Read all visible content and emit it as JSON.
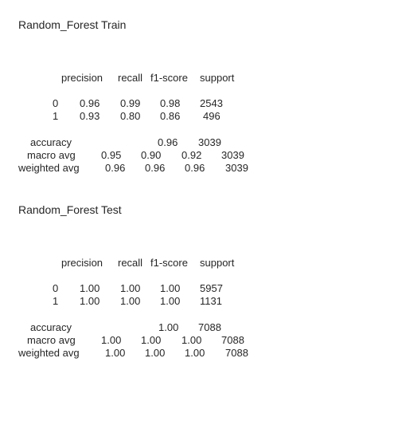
{
  "reports": [
    {
      "title": "Random_Forest Train",
      "header": [
        "precision",
        "recall",
        "f1-score",
        "support"
      ],
      "rows": [
        {
          "label": "0",
          "precision": "0.96",
          "recall": "0.99",
          "f1": "0.98",
          "support": "2543"
        },
        {
          "label": "1",
          "precision": "0.93",
          "recall": "0.80",
          "f1": "0.86",
          "support": "496"
        }
      ],
      "accuracy": {
        "label": "accuracy",
        "f1": "0.96",
        "support": "3039"
      },
      "macro": {
        "label": "macro avg",
        "precision": "0.95",
        "recall": "0.90",
        "f1": "0.92",
        "support": "3039"
      },
      "weighted": {
        "label": "weighted avg",
        "precision": "0.96",
        "recall": "0.96",
        "f1": "0.96",
        "support": "3039"
      }
    },
    {
      "title": "Random_Forest Test",
      "header": [
        "precision",
        "recall",
        "f1-score",
        "support"
      ],
      "rows": [
        {
          "label": "0",
          "precision": "1.00",
          "recall": "1.00",
          "f1": "1.00",
          "support": "5957"
        },
        {
          "label": "1",
          "precision": "1.00",
          "recall": "1.00",
          "f1": "1.00",
          "support": "1131"
        }
      ],
      "accuracy": {
        "label": "accuracy",
        "f1": "1.00",
        "support": "7088"
      },
      "macro": {
        "label": "macro avg",
        "precision": "1.00",
        "recall": "1.00",
        "f1": "1.00",
        "support": "7088"
      },
      "weighted": {
        "label": "weighted avg",
        "precision": "1.00",
        "recall": "1.00",
        "f1": "1.00",
        "support": "7088"
      }
    }
  ]
}
